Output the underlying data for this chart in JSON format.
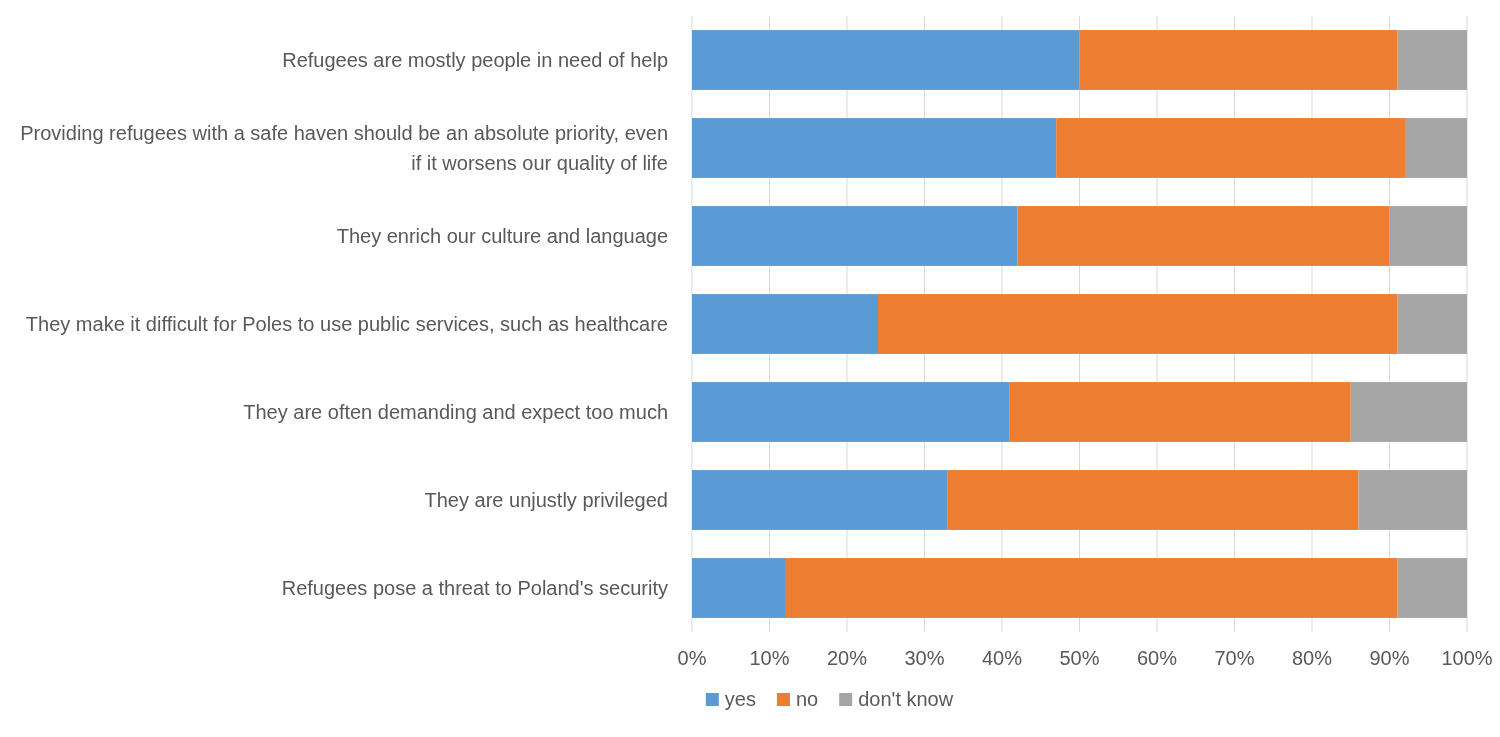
{
  "chart_data": {
    "type": "bar",
    "orientation": "horizontal",
    "stacked": true,
    "categories": [
      "Refugees are mostly people in need of help",
      "Providing refugees with a safe haven should be an absolute priority, even if it worsens our quality of life",
      "They enrich our culture and language",
      "They make it difficult for Poles to use public services, such as healthcare",
      "They are often demanding and expect too much",
      "They are unjustly privileged",
      "Refugees pose a threat to Poland's security"
    ],
    "series": [
      {
        "name": "yes",
        "color": "#5b9bd5",
        "values": [
          50,
          47,
          42,
          24,
          41,
          33,
          12
        ]
      },
      {
        "name": "no",
        "color": "#ed7d31",
        "values": [
          41,
          45,
          48,
          67,
          44,
          53,
          79
        ]
      },
      {
        "name": "don't know",
        "color": "#a5a5a5",
        "values": [
          9,
          8,
          10,
          9,
          15,
          14,
          9
        ]
      }
    ],
    "xlim": [
      0,
      100
    ],
    "xticks": [
      {
        "value": 0,
        "label": "0%"
      },
      {
        "value": 10,
        "label": "10%"
      },
      {
        "value": 20,
        "label": "20%"
      },
      {
        "value": 30,
        "label": "30%"
      },
      {
        "value": 40,
        "label": "40%"
      },
      {
        "value": 50,
        "label": "50%"
      },
      {
        "value": 60,
        "label": "60%"
      },
      {
        "value": 70,
        "label": "70%"
      },
      {
        "value": 80,
        "label": "80%"
      },
      {
        "value": 90,
        "label": "90%"
      },
      {
        "value": 100,
        "label": "100%"
      }
    ],
    "grid": "x",
    "legend": "bottom"
  }
}
